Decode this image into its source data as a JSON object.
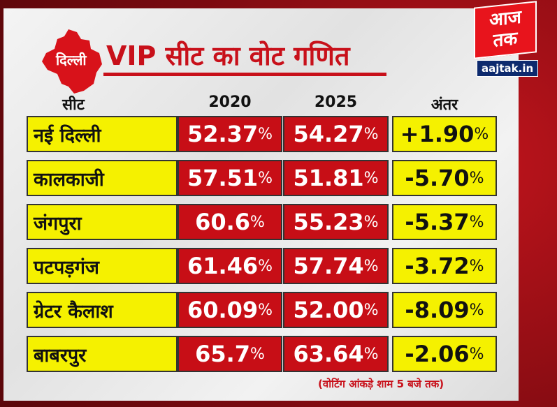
{
  "brand": {
    "logo_text": "आज तक",
    "site": "aajtak.in",
    "accent": "#c8101a",
    "yellow": "#f5f100"
  },
  "header": {
    "region": "दिल्ली",
    "title": "VIP सीट का वोट गणित"
  },
  "chart_data": {
    "type": "table",
    "title": "VIP सीट का वोट गणित",
    "columns": [
      "सीट",
      "2020",
      "2025",
      "अंतर"
    ],
    "rows": [
      {
        "seat": "नई दिल्ली",
        "v2020": "52.37",
        "v2025": "54.27",
        "diff": "+1.90"
      },
      {
        "seat": "कालकाजी",
        "v2020": "57.51",
        "v2025": "51.81",
        "diff": "-5.70"
      },
      {
        "seat": "जंगपुरा",
        "v2020": "60.6",
        "v2025": "55.23",
        "diff": "-5.37"
      },
      {
        "seat": "पटपड़गंज",
        "v2020": "61.46",
        "v2025": "57.74",
        "diff": "-3.72"
      },
      {
        "seat": "ग्रेटर कैलाश",
        "v2020": "60.09",
        "v2025": "52.00",
        "diff": "-8.09"
      },
      {
        "seat": "बाबरपुर",
        "v2020": "65.7",
        "v2025": "63.64",
        "diff": "-2.06"
      }
    ],
    "unit": "%",
    "note": "(वोटिंग आंकड़े शाम 5 बजे तक)"
  }
}
